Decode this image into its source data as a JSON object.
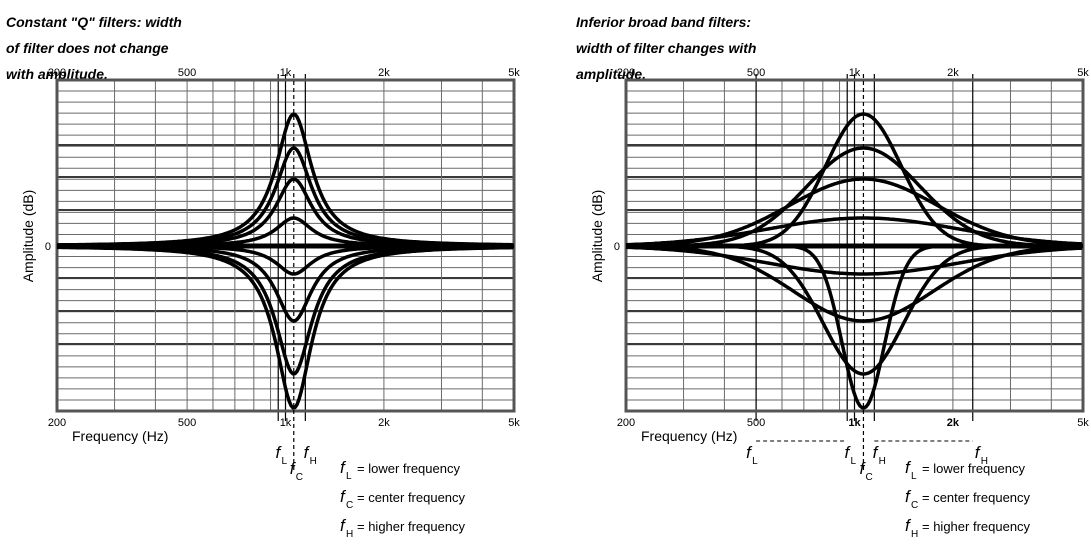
{
  "colors": {
    "curve": "#000000",
    "frame": "#555555",
    "grid": "#6a6a6a",
    "background": "#ffffff"
  },
  "panels": [
    {
      "id": "constant-q",
      "title_lines": [
        "Constant \"Q\" filters: width",
        "of filter does not change",
        "with amplitude."
      ],
      "top_ticks": [
        "200",
        "500",
        "1k",
        "2k",
        "5k"
      ],
      "bottom_ticks": [
        "200",
        "500",
        "1k",
        "2k",
        "5k"
      ],
      "bottom_bold": [
        false,
        false,
        false,
        false,
        false
      ],
      "y_label": "Amplitude (dB)",
      "y_zero_label": "0",
      "x_label": "Frequency (Hz)",
      "marker_labels": {
        "fl": "f",
        "fl_sub": "L",
        "fc": "f",
        "fc_sub": "C",
        "fh": "f",
        "fh_sub": "H"
      },
      "legend": [
        {
          "f": "f",
          "sub": "L",
          "text": "= lower frequency"
        },
        {
          "f": "f",
          "sub": "C",
          "text": "= center frequency"
        },
        {
          "f": "f",
          "sub": "H",
          "text": "= higher frequency"
        }
      ]
    },
    {
      "id": "broad-band",
      "title_lines": [
        "Inferior broad band filters:",
        "width of filter changes with",
        "amplitude."
      ],
      "top_ticks": [
        "200",
        "500",
        "1k",
        "2k",
        "5k"
      ],
      "bottom_ticks": [
        "200",
        "500",
        "1k",
        "2k",
        "5k"
      ],
      "bottom_bold": [
        false,
        false,
        true,
        true,
        false
      ],
      "y_label": "Amplitude (dB)",
      "y_zero_label": "0",
      "x_label": "Frequency (Hz)",
      "marker_labels": {
        "fl": "f",
        "fl_sub": "L",
        "fc": "f",
        "fc_sub": "C",
        "fh": "f",
        "fh_sub": "H",
        "fl2": "f",
        "fl2_sub": "L",
        "fh2": "f",
        "fh2_sub": "H"
      },
      "legend": [
        {
          "f": "f",
          "sub": "L",
          "text": "= lower frequency"
        },
        {
          "f": "f",
          "sub": "C",
          "text": "= center frequency"
        },
        {
          "f": "f",
          "sub": "H",
          "text": "= higher frequency"
        }
      ]
    }
  ]
}
